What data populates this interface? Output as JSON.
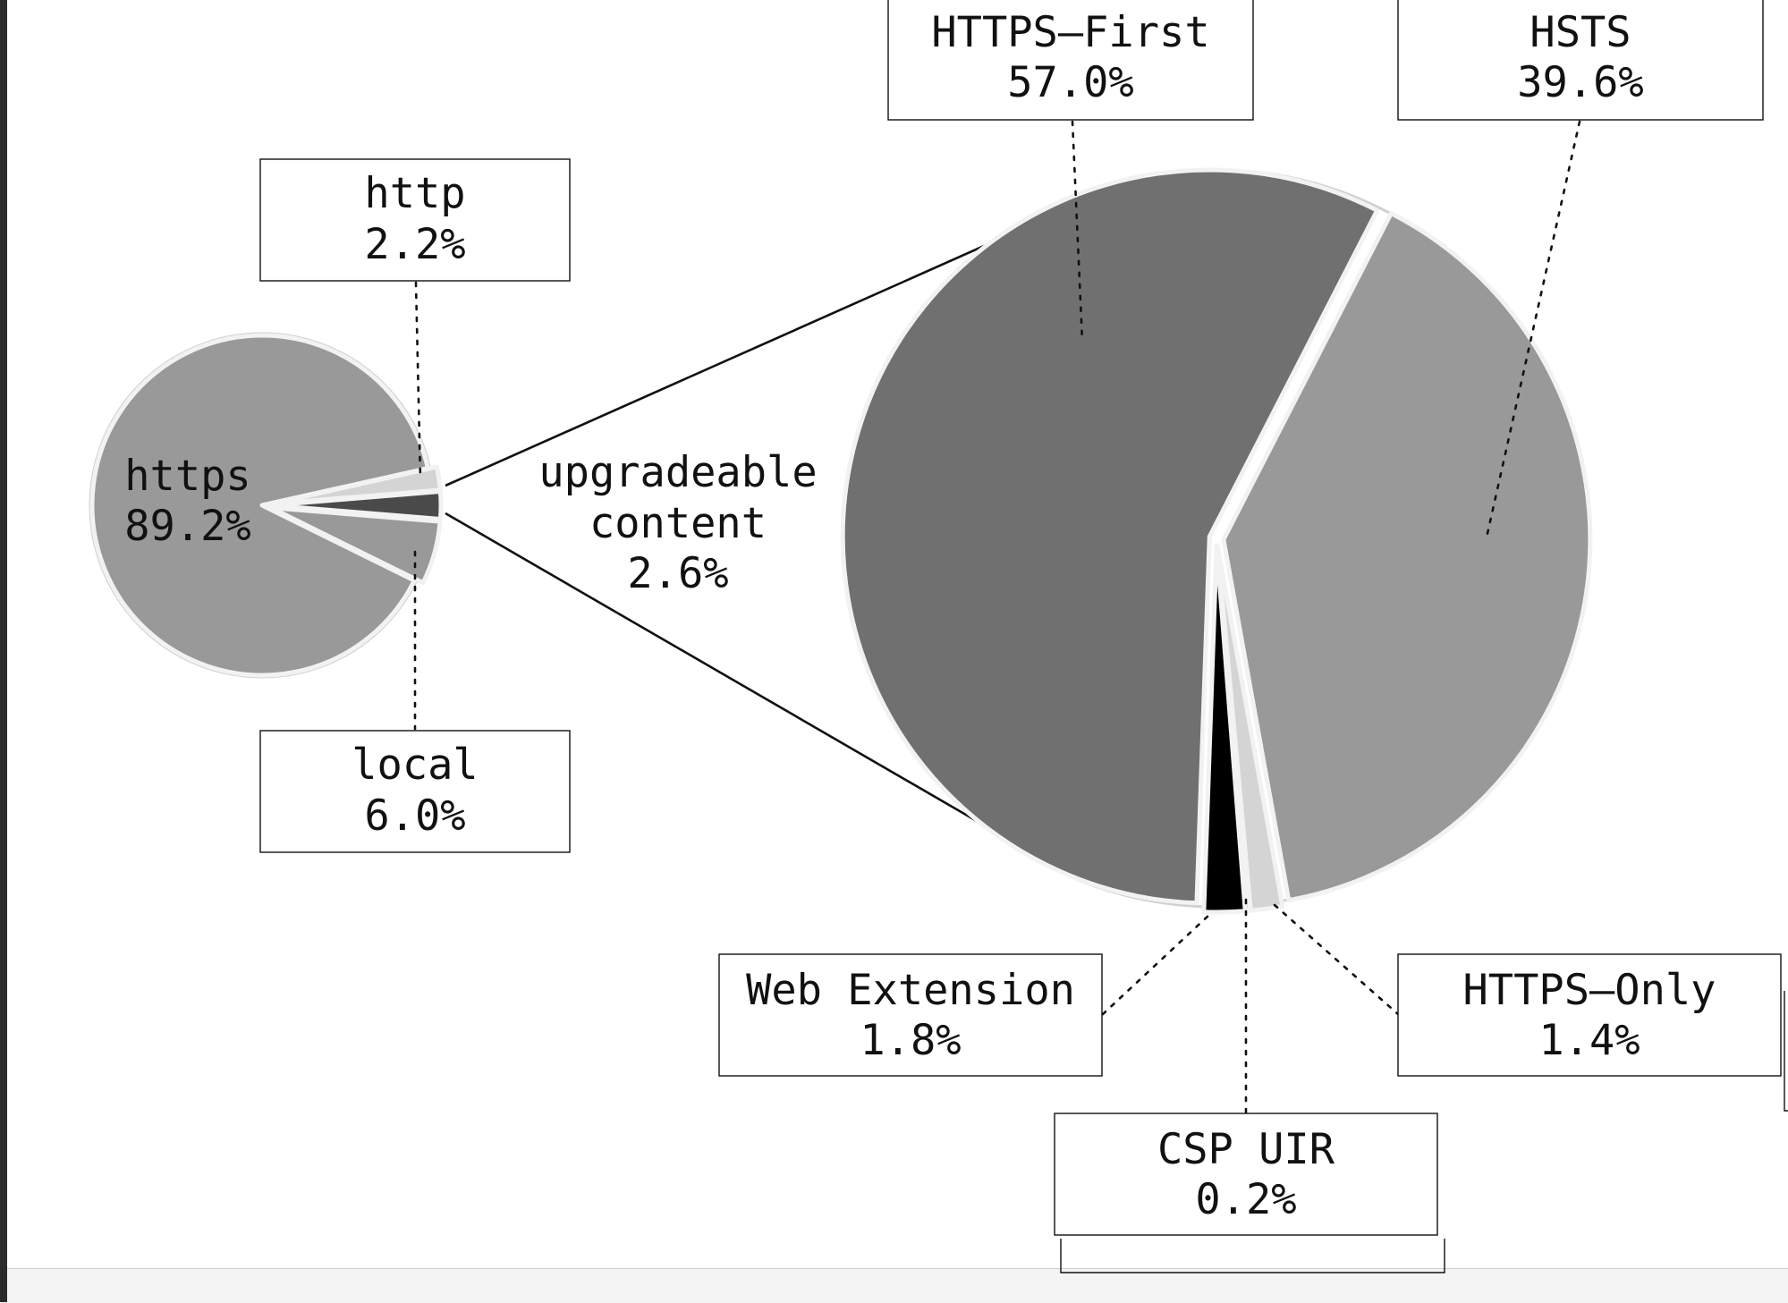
{
  "chart_data": [
    {
      "type": "pie",
      "slices": [
        {
          "label": "https",
          "value": 89.2,
          "value_text": "89.2%",
          "color": "#999999"
        },
        {
          "label": "http",
          "value": 2.2,
          "value_text": "2.2%",
          "color": "#d4d4d4"
        },
        {
          "label": "upgradeable content",
          "value": 2.6,
          "value_text": "2.6%",
          "color": "#4a4a4a"
        },
        {
          "label": "local",
          "value": 6.0,
          "value_text": "6.0%",
          "color": "#999999"
        }
      ],
      "exploded_slice": "upgradeable content"
    },
    {
      "type": "pie",
      "breakdown_of": "upgradeable content",
      "slices": [
        {
          "label": "HTTPS–First",
          "value": 57.0,
          "value_text": "57.0%",
          "color": "#707070"
        },
        {
          "label": "HSTS",
          "value": 39.6,
          "value_text": "39.6%",
          "color": "#999999"
        },
        {
          "label": "HTTPS–Only",
          "value": 1.4,
          "value_text": "1.4%",
          "color": "#d4d4d4"
        },
        {
          "label": "CSP UIR",
          "value": 0.2,
          "value_text": "0.2%",
          "color": "#111111"
        },
        {
          "label": "Web Extension",
          "value": 1.8,
          "value_text": "1.8%",
          "color": "#000000"
        }
      ]
    }
  ],
  "labels": {
    "https": {
      "name": "https",
      "value": "89.2%"
    },
    "http": {
      "name": "http",
      "value": "2.2%"
    },
    "local": {
      "name": "local",
      "value": "6.0%"
    },
    "upgradeable": {
      "line1": "upgradeable",
      "line2": "content",
      "value": "2.6%"
    },
    "https_first": {
      "name": "HTTPS–First",
      "value": "57.0%"
    },
    "hsts": {
      "name": "HSTS",
      "value": "39.6%"
    },
    "web_extension": {
      "name": "Web Extension",
      "value": "1.8%"
    },
    "https_only": {
      "name": "HTTPS–Only",
      "value": "1.4%"
    },
    "csp_uir": {
      "name": "CSP UIR",
      "value": "0.2%"
    }
  }
}
